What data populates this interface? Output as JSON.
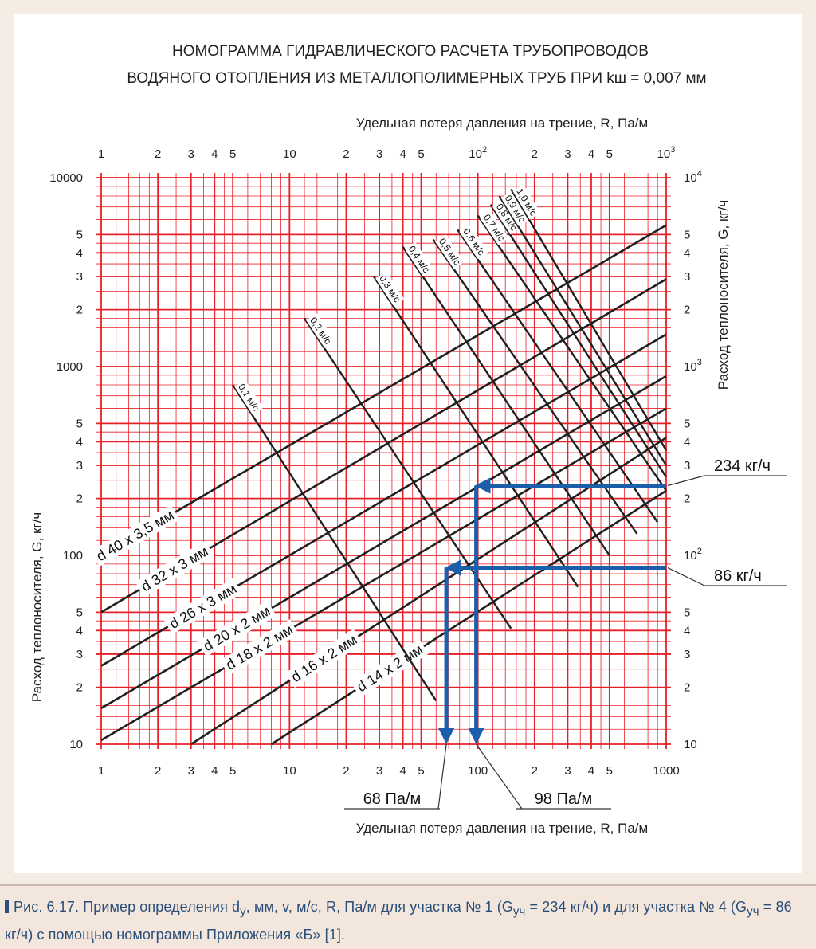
{
  "chart_data": {
    "type": "line",
    "title_line1": "НОМОГРАММА ГИДРАВЛИЧЕСКОГО РАСЧЕТА ТРУБОПРОВОДОВ",
    "title_line2": "ВОДЯНОГО ОТОПЛЕНИЯ ИЗ МЕТАЛЛОПОЛИМЕРНЫХ ТРУБ ПРИ kш = 0,007 мм",
    "xlabel_top": "Удельная потеря давления на трение, R, Па/м",
    "xlabel_bottom": "Удельная потеря давления на трение, R, Па/м",
    "ylabel_left": "Расход теплоносителя, G, кг/ч",
    "ylabel_right": "Расход теплоносителя, G, кг/ч",
    "x_scale": "log",
    "y_scale": "log",
    "xlim": [
      1,
      1000
    ],
    "ylim": [
      10,
      10000
    ],
    "x_ticks_bottom": [
      {
        "v": 1,
        "t": "1"
      },
      {
        "v": 2,
        "t": "2"
      },
      {
        "v": 3,
        "t": "3"
      },
      {
        "v": 4,
        "t": "4"
      },
      {
        "v": 5,
        "t": "5"
      },
      {
        "v": 10,
        "t": "10"
      },
      {
        "v": 20,
        "t": "2"
      },
      {
        "v": 30,
        "t": "3"
      },
      {
        "v": 40,
        "t": "4"
      },
      {
        "v": 50,
        "t": "5"
      },
      {
        "v": 100,
        "t": "100"
      },
      {
        "v": 200,
        "t": "2"
      },
      {
        "v": 300,
        "t": "3"
      },
      {
        "v": 400,
        "t": "4"
      },
      {
        "v": 500,
        "t": "5"
      },
      {
        "v": 1000,
        "t": "1000"
      }
    ],
    "x_ticks_top": [
      {
        "v": 1,
        "t": "1"
      },
      {
        "v": 2,
        "t": "2"
      },
      {
        "v": 3,
        "t": "3"
      },
      {
        "v": 4,
        "t": "4"
      },
      {
        "v": 5,
        "t": "5"
      },
      {
        "v": 10,
        "t": "10"
      },
      {
        "v": 20,
        "t": "2"
      },
      {
        "v": 30,
        "t": "3"
      },
      {
        "v": 40,
        "t": "4"
      },
      {
        "v": 50,
        "t": "5"
      },
      {
        "v": 100,
        "t": "10",
        "sup": "2"
      },
      {
        "v": 200,
        "t": "2"
      },
      {
        "v": 300,
        "t": "3"
      },
      {
        "v": 400,
        "t": "4"
      },
      {
        "v": 500,
        "t": "5"
      },
      {
        "v": 1000,
        "t": "10",
        "sup": "3"
      }
    ],
    "y_ticks_left": [
      {
        "v": 10,
        "t": "10"
      },
      {
        "v": 20,
        "t": "2"
      },
      {
        "v": 30,
        "t": "3"
      },
      {
        "v": 40,
        "t": "4"
      },
      {
        "v": 50,
        "t": "5"
      },
      {
        "v": 100,
        "t": "100"
      },
      {
        "v": 200,
        "t": "2"
      },
      {
        "v": 300,
        "t": "3"
      },
      {
        "v": 400,
        "t": "4"
      },
      {
        "v": 500,
        "t": "5"
      },
      {
        "v": 1000,
        "t": "1000"
      },
      {
        "v": 2000,
        "t": "2"
      },
      {
        "v": 3000,
        "t": "3"
      },
      {
        "v": 4000,
        "t": "4"
      },
      {
        "v": 5000,
        "t": "5"
      },
      {
        "v": 10000,
        "t": "10000"
      }
    ],
    "y_ticks_right": [
      {
        "v": 10,
        "t": "10"
      },
      {
        "v": 20,
        "t": "2"
      },
      {
        "v": 30,
        "t": "3"
      },
      {
        "v": 40,
        "t": "4"
      },
      {
        "v": 50,
        "t": "5"
      },
      {
        "v": 100,
        "t": "10",
        "sup": "2"
      },
      {
        "v": 200,
        "t": "2"
      },
      {
        "v": 300,
        "t": "3"
      },
      {
        "v": 400,
        "t": "4"
      },
      {
        "v": 500,
        "t": "5"
      },
      {
        "v": 1000,
        "t": "10",
        "sup": "3"
      },
      {
        "v": 2000,
        "t": "2"
      },
      {
        "v": 3000,
        "t": "3"
      },
      {
        "v": 4000,
        "t": "4"
      },
      {
        "v": 5000,
        "t": "5"
      },
      {
        "v": 10000,
        "t": "10",
        "sup": "4"
      }
    ],
    "diameter_lines": [
      {
        "label": "d 40 х 3,5 мм",
        "points": [
          [
            1,
            100
          ],
          [
            1000,
            5600
          ]
        ]
      },
      {
        "label": "d 32 х 3 мм",
        "points": [
          [
            1,
            50
          ],
          [
            1000,
            2900
          ]
        ]
      },
      {
        "label": "d 26 х 3 мм",
        "points": [
          [
            1,
            26
          ],
          [
            1000,
            1480
          ]
        ]
      },
      {
        "label": "d 20 х 2 мм",
        "points": [
          [
            1,
            15.5
          ],
          [
            1000,
            890
          ]
        ]
      },
      {
        "label": "d 18 х 2 мм",
        "points": [
          [
            1,
            10.5
          ],
          [
            1000,
            600
          ]
        ]
      },
      {
        "label": "d 16 х 2 мм",
        "points": [
          [
            3,
            10
          ],
          [
            1000,
            420
          ]
        ]
      },
      {
        "label": "d 14 х 2 мм",
        "points": [
          [
            8,
            10
          ],
          [
            1000,
            220
          ]
        ]
      }
    ],
    "velocity_lines": [
      {
        "label": "0,1 м/с",
        "points": [
          [
            5,
            800
          ],
          [
            60,
            17
          ]
        ]
      },
      {
        "label": "0,2 м/с",
        "points": [
          [
            12,
            1800
          ],
          [
            150,
            41
          ]
        ]
      },
      {
        "label": "0,3 м/с",
        "points": [
          [
            28,
            3000
          ],
          [
            340,
            68
          ]
        ]
      },
      {
        "label": "0,4 м/с",
        "points": [
          [
            40,
            4300
          ],
          [
            500,
            100
          ]
        ]
      },
      {
        "label": "0,5 м/с",
        "points": [
          [
            58,
            4700
          ],
          [
            700,
            130
          ]
        ]
      },
      {
        "label": "0,6 м/с",
        "points": [
          [
            78,
            5300
          ],
          [
            900,
            150
          ]
        ]
      },
      {
        "label": "0,7 м/с",
        "points": [
          [
            100,
            6300
          ],
          [
            1000,
            220
          ]
        ]
      },
      {
        "label": "0,8 м/с",
        "points": [
          [
            117,
            7200
          ],
          [
            1000,
            260
          ]
        ]
      },
      {
        "label": "0,9 м/с",
        "points": [
          [
            130,
            8000
          ],
          [
            1000,
            300
          ]
        ]
      },
      {
        "label": "1,0 м/с",
        "points": [
          [
            150,
            8700
          ],
          [
            1000,
            360
          ]
        ]
      }
    ],
    "examples": [
      {
        "callout": "234 кг/ч",
        "G": 234,
        "R": 98,
        "R_callout": "98 Па/м"
      },
      {
        "callout": "86 кг/ч",
        "G": 86,
        "R": 68,
        "R_callout": "68 Па/м"
      }
    ],
    "colors": {
      "grid": "#e8202a",
      "lines": "#1f1f1f",
      "arrows": "#1b5fab"
    }
  },
  "caption": {
    "part1": "Рис. 6.17. Пример определения d",
    "sub1": "у",
    "part2": ", мм, v, м/с, R, Па/м для участка № 1 (G",
    "sub2": "уч",
    "part3": " = 234 кг/ч) и для участка № 4 (G",
    "sub3": "уч",
    "part4": " = 86 кг/ч) с помощью номограммы Приложения «Б» [1]."
  }
}
